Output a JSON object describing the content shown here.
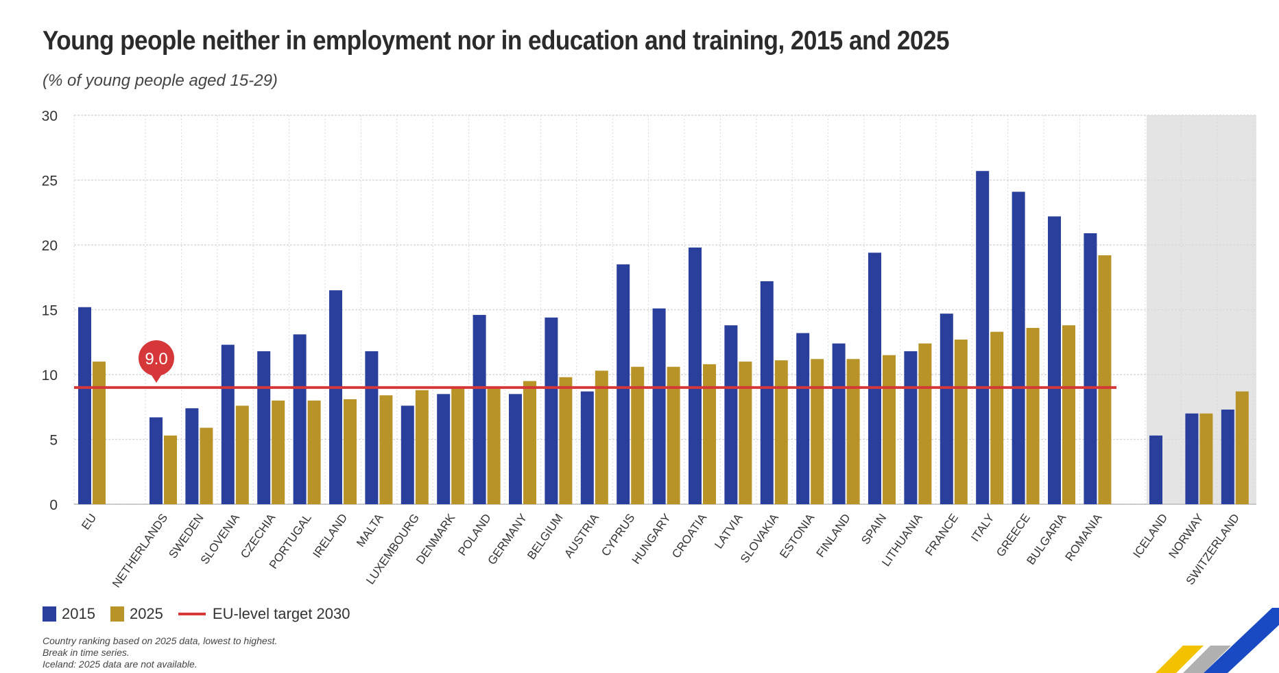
{
  "title": "Young people neither in employment nor in education and training, 2015 and 2025",
  "subtitle": "(% of young people aged 15-29)",
  "legend": {
    "s2015": "2015",
    "s2025": "2025",
    "target": "EU-level target 2030"
  },
  "notes": [
    "Country ranking based on 2025 data, lowest to highest.",
    "Break in time series.",
    "Iceland: 2025 data are not available."
  ],
  "colors": {
    "s2015": "#2a3e9c",
    "s2025": "#b89328",
    "target": "#d6383a",
    "grid": "#d9d9d9",
    "non_eu_band": "#e4e4e4"
  },
  "chart_data": {
    "type": "bar",
    "categories": [
      "EU",
      "NETHERLANDS",
      "SWEDEN",
      "SLOVENIA",
      "CZECHIA",
      "PORTUGAL",
      "IRELAND",
      "MALTA",
      "LUXEMBOURG",
      "DENMARK",
      "POLAND",
      "GERMANY",
      "BELGIUM",
      "AUSTRIA",
      "CYPRUS",
      "HUNGARY",
      "CROATIA",
      "LATVIA",
      "SLOVAKIA",
      "ESTONIA",
      "FINLAND",
      "SPAIN",
      "LITHUANIA",
      "FRANCE",
      "ITALY",
      "GREECE",
      "BULGARIA",
      "ROMANIA",
      "ICELAND",
      "NORWAY",
      "SWITZERLAND"
    ],
    "groups": {
      "eu_aggregate": [
        "EU"
      ],
      "member_states": [
        "NETHERLANDS",
        "SWEDEN",
        "SLOVENIA",
        "CZECHIA",
        "PORTUGAL",
        "IRELAND",
        "MALTA",
        "LUXEMBOURG",
        "DENMARK",
        "POLAND",
        "GERMANY",
        "BELGIUM",
        "AUSTRIA",
        "CYPRUS",
        "HUNGARY",
        "CROATIA",
        "LATVIA",
        "SLOVAKIA",
        "ESTONIA",
        "FINLAND",
        "SPAIN",
        "LITHUANIA",
        "FRANCE",
        "ITALY",
        "GREECE",
        "BULGARIA",
        "ROMANIA"
      ],
      "non_eu": [
        "ICELAND",
        "NORWAY",
        "SWITZERLAND"
      ]
    },
    "series": [
      {
        "name": "2015",
        "values": [
          15.2,
          6.7,
          7.4,
          12.3,
          11.8,
          13.1,
          16.5,
          11.8,
          7.6,
          8.5,
          14.6,
          8.5,
          14.4,
          8.7,
          18.5,
          15.1,
          19.8,
          13.8,
          17.2,
          13.2,
          12.4,
          19.4,
          11.8,
          14.7,
          25.7,
          24.1,
          22.2,
          20.9,
          5.3,
          7.0,
          7.3
        ]
      },
      {
        "name": "2025",
        "values": [
          11.0,
          5.3,
          5.9,
          7.6,
          8.0,
          8.0,
          8.1,
          8.4,
          8.8,
          9.0,
          9.1,
          9.5,
          9.8,
          10.3,
          10.6,
          10.6,
          10.8,
          11.0,
          11.1,
          11.2,
          11.2,
          11.5,
          12.4,
          12.7,
          13.3,
          13.6,
          13.8,
          19.2,
          null,
          7.0,
          8.7
        ]
      }
    ],
    "target": {
      "name": "EU-level target 2030",
      "value": 9.0,
      "label": "9.0"
    },
    "ylim": [
      0,
      30
    ],
    "yticks": [
      0,
      5,
      10,
      15,
      20,
      25,
      30
    ],
    "xlabel": "",
    "ylabel": "",
    "grid": true,
    "legend_position": "bottom-left"
  }
}
